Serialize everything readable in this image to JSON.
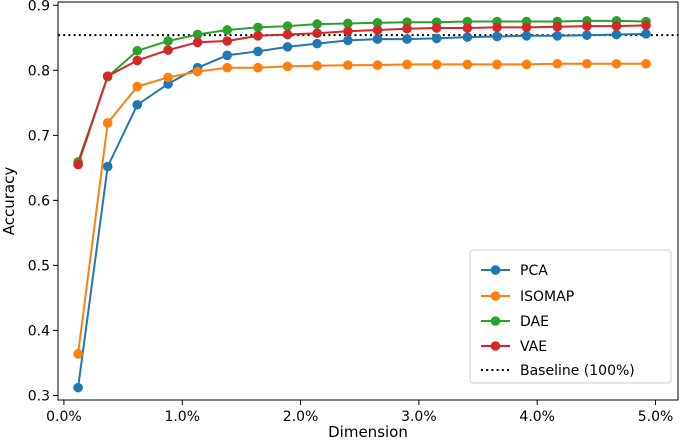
{
  "chart_data": {
    "type": "line",
    "title": "",
    "xlabel": "Dimension",
    "ylabel": "Accuracy",
    "xlim": [
      -0.0005,
      0.0519
    ],
    "ylim": [
      0.293,
      0.905
    ],
    "x_ticks": [
      0.0,
      0.01,
      0.02,
      0.03,
      0.04,
      0.05
    ],
    "x_tick_labels": [
      "0.0%",
      "1.0%",
      "2.0%",
      "3.0%",
      "4.0%",
      "5.0%"
    ],
    "y_ticks": [
      0.3,
      0.4,
      0.5,
      0.6,
      0.7,
      0.8,
      0.9
    ],
    "y_tick_labels": [
      "0.3",
      "0.4",
      "0.5",
      "0.6",
      "0.7",
      "0.8",
      "0.9"
    ],
    "grid": false,
    "legend_position": "bottom-right",
    "x": [
      0.0012,
      0.0037,
      0.0062,
      0.0088,
      0.0113,
      0.0138,
      0.0164,
      0.0189,
      0.0214,
      0.024,
      0.0265,
      0.029,
      0.0315,
      0.0341,
      0.0366,
      0.0391,
      0.0417,
      0.0442,
      0.0467,
      0.0492
    ],
    "series": [
      {
        "name": "PCA",
        "color": "#1f77b4",
        "values": [
          0.312,
          0.652,
          0.747,
          0.779,
          0.804,
          0.823,
          0.829,
          0.836,
          0.841,
          0.846,
          0.848,
          0.848,
          0.849,
          0.851,
          0.852,
          0.853,
          0.853,
          0.854,
          0.855,
          0.856
        ]
      },
      {
        "name": "ISOMAP",
        "color": "#ff7f0e",
        "values": [
          0.364,
          0.719,
          0.775,
          0.789,
          0.798,
          0.804,
          0.804,
          0.806,
          0.807,
          0.808,
          0.808,
          0.809,
          0.809,
          0.809,
          0.809,
          0.809,
          0.81,
          0.81,
          0.81,
          0.81
        ]
      },
      {
        "name": "DAE",
        "color": "#2ca02c",
        "values": [
          0.659,
          0.79,
          0.83,
          0.845,
          0.855,
          0.862,
          0.866,
          0.868,
          0.871,
          0.872,
          0.873,
          0.874,
          0.874,
          0.875,
          0.875,
          0.875,
          0.875,
          0.876,
          0.876,
          0.875
        ]
      },
      {
        "name": "VAE",
        "color": "#d62728",
        "values": [
          0.655,
          0.791,
          0.815,
          0.831,
          0.843,
          0.845,
          0.853,
          0.855,
          0.857,
          0.86,
          0.862,
          0.864,
          0.865,
          0.865,
          0.866,
          0.866,
          0.867,
          0.868,
          0.868,
          0.869
        ]
      }
    ],
    "baseline": {
      "name": "Baseline (100%)",
      "value": 0.854,
      "color": "#000000",
      "style": "dotted"
    }
  }
}
